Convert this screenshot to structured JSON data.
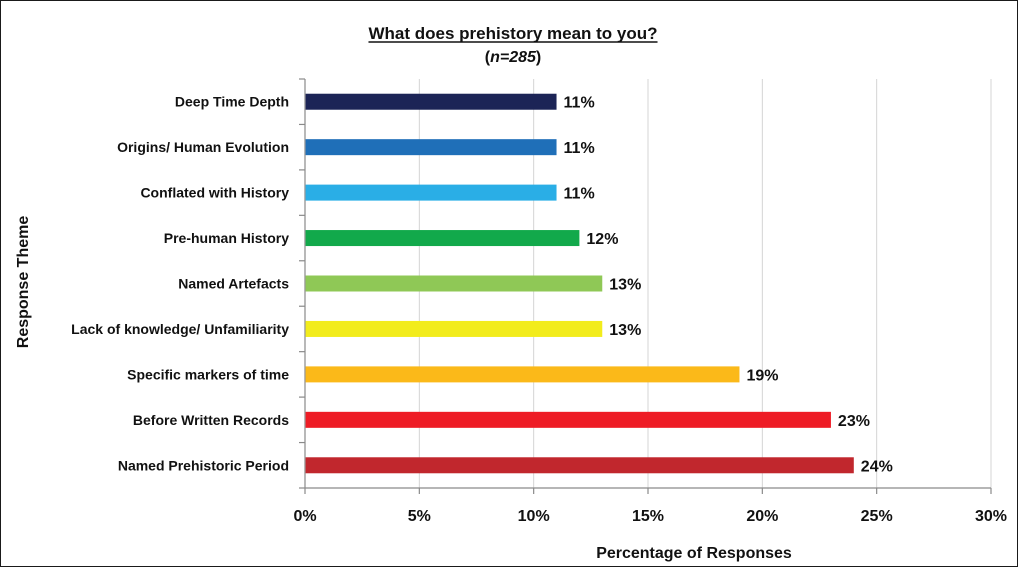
{
  "chart_data": {
    "type": "bar",
    "orientation": "horizontal",
    "title": "What does prehistory mean to you?",
    "subtitle": {
      "open": "(",
      "italic": "n=285",
      "close": ")"
    },
    "xlabel": "Percentage of Responses",
    "ylabel": "Response Theme",
    "xlim": [
      0,
      30
    ],
    "xticks": [
      0,
      5,
      10,
      15,
      20,
      25,
      30
    ],
    "xtick_labels": [
      "0%",
      "5%",
      "10%",
      "15%",
      "20%",
      "25%",
      "30%"
    ],
    "grid": "vertical",
    "categories": [
      "Deep Time Depth",
      "Origins/ Human Evolution",
      "Conflated with History",
      "Pre-human History",
      "Named Artefacts",
      "Lack of knowledge/ Unfamiliarity",
      "Specific markers of time",
      "Before Written Records",
      "Named Prehistoric Period"
    ],
    "values": [
      11,
      11,
      11,
      12,
      13,
      13,
      19,
      23,
      24
    ],
    "data_labels": [
      "11%",
      "11%",
      "11%",
      "12%",
      "13%",
      "13%",
      "19%",
      "23%",
      "24%"
    ],
    "colors": [
      "#1c2456",
      "#1f6fb8",
      "#2aaee6",
      "#12a94b",
      "#8fc856",
      "#f2ec1c",
      "#fbb919",
      "#ee1c25",
      "#c1272d"
    ]
  }
}
